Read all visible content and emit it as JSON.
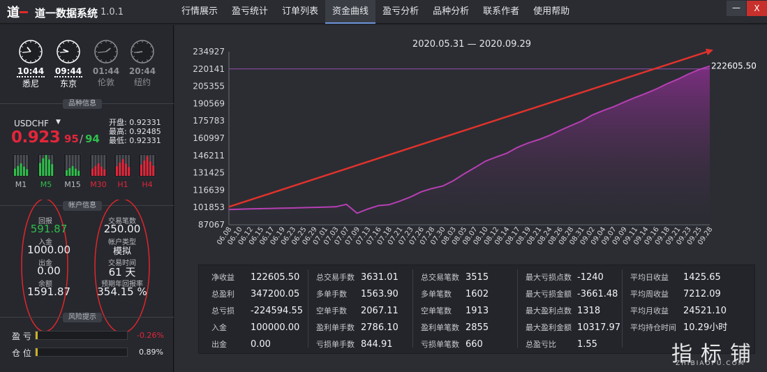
{
  "app": {
    "title": "道一数据系统",
    "version": "1.0.1",
    "min_label": "—",
    "close_label": "X"
  },
  "tabs": [
    {
      "label": "行情展示",
      "active": false
    },
    {
      "label": "盈亏统计",
      "active": false
    },
    {
      "label": "订单列表",
      "active": false
    },
    {
      "label": "资金曲线",
      "active": true
    },
    {
      "label": "盈亏分析",
      "active": false
    },
    {
      "label": "品种分析",
      "active": false
    },
    {
      "label": "联系作者",
      "active": false
    },
    {
      "label": "使用帮助",
      "active": false
    }
  ],
  "clocks": [
    {
      "time": "10:44",
      "city": "悉尼",
      "active": true,
      "hour": 10,
      "minute": 44
    },
    {
      "time": "09:44",
      "city": "东京",
      "active": true,
      "hour": 9,
      "minute": 44
    },
    {
      "time": "01:44",
      "city": "伦敦",
      "active": false,
      "hour": 1,
      "minute": 44
    },
    {
      "time": "20:44",
      "city": "纽约",
      "active": false,
      "hour": 20,
      "minute": 44
    }
  ],
  "sections": {
    "symbol_info": "品种信息",
    "account_info": "帐户信息",
    "risk": "风险提示"
  },
  "symbol": {
    "name": "USDCHF",
    "price_main": "0.923",
    "bid_tail": "95",
    "sep": "/",
    "ask_tail": "94",
    "open": "开盘: 0.92331",
    "high": "最高: 0.92485",
    "low": "最低: 0.92331"
  },
  "timeframes": [
    {
      "label": "M1",
      "color": "#2fbf4a",
      "level": 0.45
    },
    {
      "label": "M5",
      "color": "#2fbf4a",
      "level": 0.8
    },
    {
      "label": "M15",
      "color": "#2fbf4a",
      "level": 0.35
    },
    {
      "label": "M30",
      "color": "#e2263a",
      "level": 0.45
    },
    {
      "label": "H1",
      "color": "#e2263a",
      "level": 0.6
    },
    {
      "label": "H4",
      "color": "#e2263a",
      "level": 0.7
    }
  ],
  "account": {
    "retrace_label": "回报",
    "retrace_value": "591.87",
    "deposit_label": "入金",
    "deposit_value": "1000.00",
    "withdraw_label": "出金",
    "withdraw_value": "0.00",
    "balance_label": "余额",
    "balance_value": "1591.87",
    "lots_label": "交易笔数",
    "lots_value": "250.00",
    "type_label": "帐户类型",
    "type_value": "模拟",
    "days_label": "交易时间",
    "days_value": "61 天",
    "annual_label": "预期年回报率",
    "annual_value": "354.15 %"
  },
  "risk": {
    "pl_label": "盈 亏",
    "pl_value": "-0.26%",
    "pl_level": 0.02,
    "pos_label": "仓 位",
    "pos_value": "0.89%",
    "pos_level": 0.02
  },
  "chart_data": {
    "type": "area",
    "title": "2020.05.31 — 2020.09.29",
    "xlabel": "",
    "ylabel": "",
    "last_value_label": "222605.50",
    "y_ticks": [
      "234927",
      "220141",
      "205355",
      "190569",
      "175783",
      "160997",
      "146211",
      "131425",
      "116639",
      "101853",
      "87067"
    ],
    "ylim": [
      87067,
      234927
    ],
    "x_ticks": [
      "06.08",
      "06.10",
      "06.12",
      "06.15",
      "06.17",
      "06.19",
      "06.23",
      "06.25",
      "06.29",
      "07.01",
      "07.03",
      "07.07",
      "07.09",
      "07.13",
      "07.16",
      "07.18",
      "07.21",
      "07.23",
      "07.26",
      "07.28",
      "07.30",
      "08.03",
      "08.05",
      "08.07",
      "08.10",
      "08.12",
      "08.14",
      "08.17",
      "08.19",
      "08.21",
      "08.24",
      "08.26",
      "08.28",
      "08.31",
      "09.02",
      "09.04",
      "09.07",
      "09.09",
      "09.11",
      "09.14",
      "09.16",
      "09.18",
      "09.21",
      "09.23",
      "09.25",
      "09.28"
    ],
    "values": [
      100000,
      100300,
      100600,
      100800,
      101000,
      101200,
      101400,
      101700,
      101900,
      102100,
      102400,
      104500,
      96900,
      100500,
      103400,
      104200,
      107300,
      110800,
      115200,
      118000,
      120100,
      124600,
      130500,
      135800,
      141300,
      144900,
      148100,
      153100,
      156900,
      159800,
      163300,
      167600,
      171700,
      175600,
      180800,
      184500,
      187900,
      191900,
      195700,
      199200,
      203000,
      207500,
      211300,
      215800,
      219600,
      222605.5
    ],
    "reference_line": 220141,
    "line_color": "#b73fb3",
    "arrow_color": "#e0322c",
    "grid": false
  },
  "stats": {
    "col1": [
      {
        "label": "净收益",
        "value": "122605.50"
      },
      {
        "label": "总盈利",
        "value": "347200.05"
      },
      {
        "label": "总亏损",
        "value": "-224594.55"
      },
      {
        "label": "入金",
        "value": "100000.00"
      },
      {
        "label": "出金",
        "value": "0.00"
      }
    ],
    "col2": [
      {
        "label": "总交易手数",
        "value": "3631.01"
      },
      {
        "label": "多单手数",
        "value": "1563.90"
      },
      {
        "label": "空单手数",
        "value": "2067.11"
      },
      {
        "label": "盈利单手数",
        "value": "2786.10"
      },
      {
        "label": "亏损单手数",
        "value": "844.91"
      }
    ],
    "col3": [
      {
        "label": "总交易笔数",
        "value": "3515"
      },
      {
        "label": "多单笔数",
        "value": "1602"
      },
      {
        "label": "空单笔数",
        "value": "1913"
      },
      {
        "label": "盈利单笔数",
        "value": "2855"
      },
      {
        "label": "亏损单笔数",
        "value": "660"
      }
    ],
    "col4": [
      {
        "label": "最大亏损点数",
        "value": "-1240"
      },
      {
        "label": "最大亏损金额",
        "value": "-3661.48"
      },
      {
        "label": "最大盈利点数",
        "value": "1318"
      },
      {
        "label": "最大盈利金额",
        "value": "10317.97"
      },
      {
        "label": "总盈亏比",
        "value": "1.55"
      }
    ],
    "col5": [
      {
        "label": "平均日收益",
        "value": "1425.65"
      },
      {
        "label": "平均周收益",
        "value": "7212.09"
      },
      {
        "label": "平均月收益",
        "value": "24521.10"
      },
      {
        "label": "平均持仓时间",
        "value": "10.29小时"
      }
    ]
  },
  "watermark": {
    "text": "指标铺",
    "sub": "ZHIBIAOPU.COM"
  }
}
